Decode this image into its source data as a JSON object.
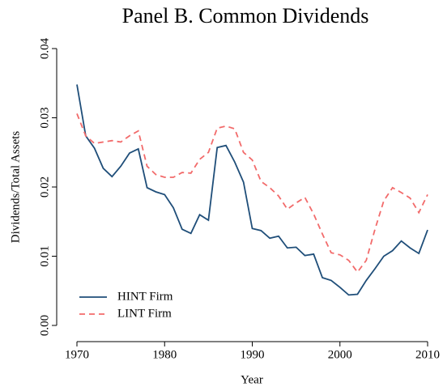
{
  "chart_data": {
    "type": "line",
    "title": "Panel B. Common Dividends",
    "x_label": "Year",
    "y_label": "Dividends/Total Assets",
    "x": [
      1970,
      1971,
      1972,
      1973,
      1974,
      1975,
      1976,
      1977,
      1978,
      1979,
      1980,
      1981,
      1982,
      1983,
      1984,
      1985,
      1986,
      1987,
      1988,
      1989,
      1990,
      1991,
      1992,
      1993,
      1994,
      1995,
      1996,
      1997,
      1998,
      1999,
      2000,
      2001,
      2002,
      2003,
      2004,
      2005,
      2006,
      2007,
      2008,
      2009,
      2010
    ],
    "series": [
      {
        "name": "HINT Firm",
        "color": "#1f4e79",
        "dash": "solid",
        "values": [
          0.0348,
          0.0274,
          0.0256,
          0.0227,
          0.0215,
          0.023,
          0.0249,
          0.0255,
          0.0199,
          0.0193,
          0.0189,
          0.017,
          0.0139,
          0.0133,
          0.016,
          0.0152,
          0.0257,
          0.026,
          0.0236,
          0.0207,
          0.014,
          0.0137,
          0.0126,
          0.0129,
          0.0112,
          0.0113,
          0.0101,
          0.0103,
          0.0069,
          0.0065,
          0.0055,
          0.0044,
          0.0045,
          0.0065,
          0.0082,
          0.01,
          0.0108,
          0.0122,
          0.0112,
          0.0104,
          0.0138
        ]
      },
      {
        "name": "LINT Firm",
        "color": "#f26b6b",
        "dash": "dashed",
        "values": [
          0.0306,
          0.0274,
          0.0263,
          0.0265,
          0.0267,
          0.0265,
          0.0274,
          0.0281,
          0.023,
          0.0218,
          0.0214,
          0.0214,
          0.0221,
          0.022,
          0.024,
          0.025,
          0.0285,
          0.0288,
          0.0284,
          0.025,
          0.0239,
          0.0208,
          0.0199,
          0.0187,
          0.0168,
          0.0177,
          0.0185,
          0.0161,
          0.0132,
          0.0105,
          0.0102,
          0.0094,
          0.0077,
          0.0094,
          0.0139,
          0.018,
          0.0199,
          0.0192,
          0.0184,
          0.0163,
          0.0189
        ]
      }
    ],
    "xlim": [
      1970,
      2010
    ],
    "xticks": [
      1970,
      1980,
      1990,
      2000,
      2010
    ],
    "ylim": [
      0,
      0.04
    ],
    "yticks": [
      {
        "value": 0,
        "label": "0.00"
      },
      0.01,
      0.02,
      0.03,
      0.04
    ],
    "legend": "bottom-left"
  }
}
